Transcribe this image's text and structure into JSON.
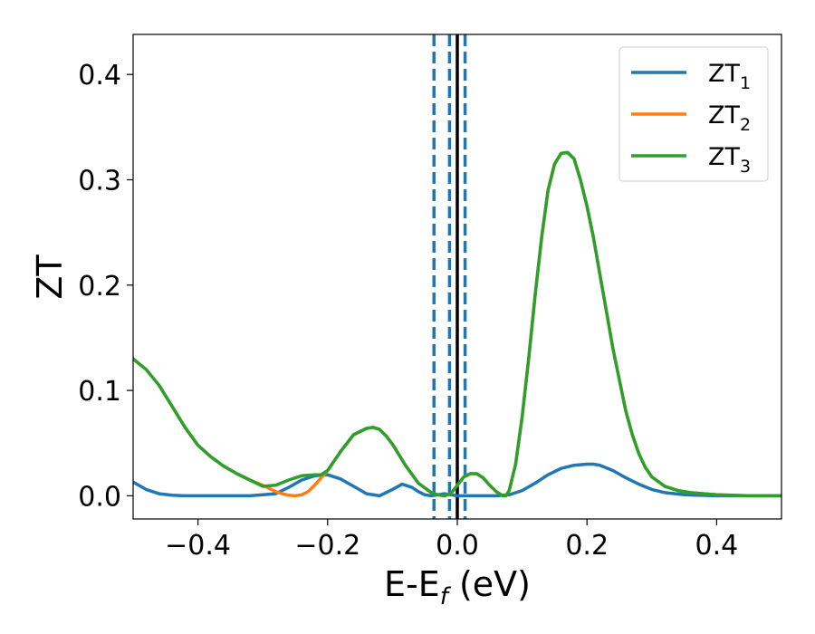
{
  "chart_data": {
    "type": "line",
    "xlabel": "E-E",
    "xlabel_sub": "f",
    "xlabel_unit": " (eV)",
    "ylabel": "ZT",
    "xlim": [
      -0.5,
      0.5
    ],
    "ylim": [
      -0.022,
      0.438
    ],
    "xticks": [
      -0.4,
      -0.2,
      0.0,
      0.2,
      0.4
    ],
    "xtick_labels": [
      "−0.4",
      "−0.2",
      "0.0",
      "0.2",
      "0.4"
    ],
    "yticks": [
      0.0,
      0.1,
      0.2,
      0.3,
      0.4
    ],
    "ytick_labels": [
      "0.0",
      "0.1",
      "0.2",
      "0.3",
      "0.4"
    ],
    "grid": false,
    "legend_position": "top-right",
    "vlines": [
      {
        "x": -0.036,
        "style": "dashed",
        "color": "#1f77b4"
      },
      {
        "x": -0.012,
        "style": "dashed",
        "color": "#1f77b4"
      },
      {
        "x": 0.0,
        "style": "solid",
        "color": "#000000"
      },
      {
        "x": 0.012,
        "style": "dashed",
        "color": "#1f77b4"
      }
    ],
    "series": [
      {
        "name": "ZT",
        "sub": "1",
        "color": "#1f77b4",
        "x": [
          -0.5,
          -0.48,
          -0.46,
          -0.44,
          -0.42,
          -0.4,
          -0.36,
          -0.32,
          -0.28,
          -0.26,
          -0.24,
          -0.22,
          -0.2,
          -0.18,
          -0.16,
          -0.14,
          -0.12,
          -0.1,
          -0.085,
          -0.07,
          -0.06,
          -0.05,
          -0.04,
          -0.03,
          -0.02,
          -0.01,
          0.0,
          0.02,
          0.04,
          0.06,
          0.08,
          0.1,
          0.12,
          0.14,
          0.16,
          0.18,
          0.2,
          0.21,
          0.22,
          0.24,
          0.26,
          0.28,
          0.3,
          0.32,
          0.35,
          0.4,
          0.45,
          0.5
        ],
        "y": [
          0.013,
          0.006,
          0.002,
          0.0005,
          0.0,
          0.0,
          0.0,
          0.0,
          0.002,
          0.008,
          0.015,
          0.019,
          0.02,
          0.016,
          0.009,
          0.002,
          0.0,
          0.006,
          0.011,
          0.008,
          0.004,
          0.001,
          0.0,
          0.001,
          0.002,
          0.001,
          0.0,
          0.0,
          0.0,
          0.0,
          0.001,
          0.005,
          0.012,
          0.02,
          0.026,
          0.029,
          0.03,
          0.03,
          0.029,
          0.024,
          0.017,
          0.011,
          0.006,
          0.003,
          0.001,
          0.0,
          0.0,
          0.0
        ]
      },
      {
        "name": "ZT",
        "sub": "2",
        "color": "#ff7f0e",
        "x": [
          -0.5,
          -0.48,
          -0.46,
          -0.44,
          -0.42,
          -0.4,
          -0.38,
          -0.36,
          -0.34,
          -0.32,
          -0.3,
          -0.28,
          -0.27,
          -0.26,
          -0.25,
          -0.24,
          -0.23,
          -0.22,
          -0.21,
          -0.2,
          -0.18,
          -0.16,
          -0.14,
          -0.13,
          -0.12,
          -0.11,
          -0.1,
          -0.08,
          -0.06,
          -0.04,
          -0.03,
          -0.02,
          -0.01,
          0.0,
          0.01,
          0.02,
          0.03,
          0.04,
          0.05,
          0.06,
          0.07,
          0.075,
          0.08,
          0.09,
          0.1,
          0.11,
          0.12,
          0.13,
          0.14,
          0.15,
          0.16,
          0.17,
          0.18,
          0.19,
          0.2,
          0.21,
          0.22,
          0.23,
          0.24,
          0.25,
          0.26,
          0.27,
          0.28,
          0.29,
          0.3,
          0.32,
          0.34,
          0.36,
          0.38,
          0.4,
          0.45,
          0.5
        ],
        "y": [
          0.13,
          0.12,
          0.105,
          0.085,
          0.065,
          0.048,
          0.037,
          0.028,
          0.021,
          0.015,
          0.01,
          0.004,
          0.002,
          0.0005,
          0.0,
          0.001,
          0.004,
          0.01,
          0.017,
          0.024,
          0.042,
          0.058,
          0.064,
          0.065,
          0.063,
          0.057,
          0.049,
          0.029,
          0.012,
          0.003,
          0.001,
          0.0,
          0.002,
          0.01,
          0.018,
          0.021,
          0.021,
          0.017,
          0.01,
          0.004,
          0.0,
          0.0,
          0.005,
          0.03,
          0.075,
          0.13,
          0.19,
          0.245,
          0.29,
          0.315,
          0.325,
          0.326,
          0.32,
          0.3,
          0.275,
          0.245,
          0.21,
          0.175,
          0.14,
          0.11,
          0.08,
          0.058,
          0.04,
          0.027,
          0.018,
          0.009,
          0.005,
          0.003,
          0.002,
          0.001,
          0.0,
          0.0
        ]
      },
      {
        "name": "ZT",
        "sub": "3",
        "color": "#2ca02c",
        "x": [
          -0.5,
          -0.48,
          -0.46,
          -0.44,
          -0.42,
          -0.4,
          -0.38,
          -0.36,
          -0.34,
          -0.32,
          -0.3,
          -0.28,
          -0.26,
          -0.24,
          -0.22,
          -0.21,
          -0.2,
          -0.18,
          -0.16,
          -0.14,
          -0.13,
          -0.12,
          -0.11,
          -0.1,
          -0.08,
          -0.06,
          -0.04,
          -0.03,
          -0.02,
          -0.01,
          0.0,
          0.01,
          0.02,
          0.03,
          0.04,
          0.05,
          0.06,
          0.07,
          0.075,
          0.08,
          0.09,
          0.1,
          0.11,
          0.12,
          0.13,
          0.14,
          0.15,
          0.16,
          0.17,
          0.18,
          0.19,
          0.2,
          0.21,
          0.22,
          0.23,
          0.24,
          0.25,
          0.26,
          0.27,
          0.28,
          0.29,
          0.3,
          0.32,
          0.34,
          0.36,
          0.38,
          0.4,
          0.45,
          0.5
        ],
        "y": [
          0.13,
          0.12,
          0.105,
          0.085,
          0.065,
          0.048,
          0.037,
          0.028,
          0.021,
          0.015,
          0.009,
          0.01,
          0.015,
          0.019,
          0.02,
          0.02,
          0.024,
          0.042,
          0.058,
          0.064,
          0.065,
          0.063,
          0.057,
          0.049,
          0.029,
          0.012,
          0.003,
          0.001,
          0.0,
          0.002,
          0.01,
          0.018,
          0.021,
          0.021,
          0.017,
          0.01,
          0.004,
          0.0,
          0.0,
          0.005,
          0.03,
          0.075,
          0.13,
          0.19,
          0.245,
          0.29,
          0.315,
          0.325,
          0.326,
          0.32,
          0.3,
          0.275,
          0.245,
          0.21,
          0.175,
          0.14,
          0.11,
          0.08,
          0.058,
          0.04,
          0.027,
          0.018,
          0.009,
          0.005,
          0.003,
          0.002,
          0.001,
          0.0,
          0.0
        ]
      }
    ]
  }
}
